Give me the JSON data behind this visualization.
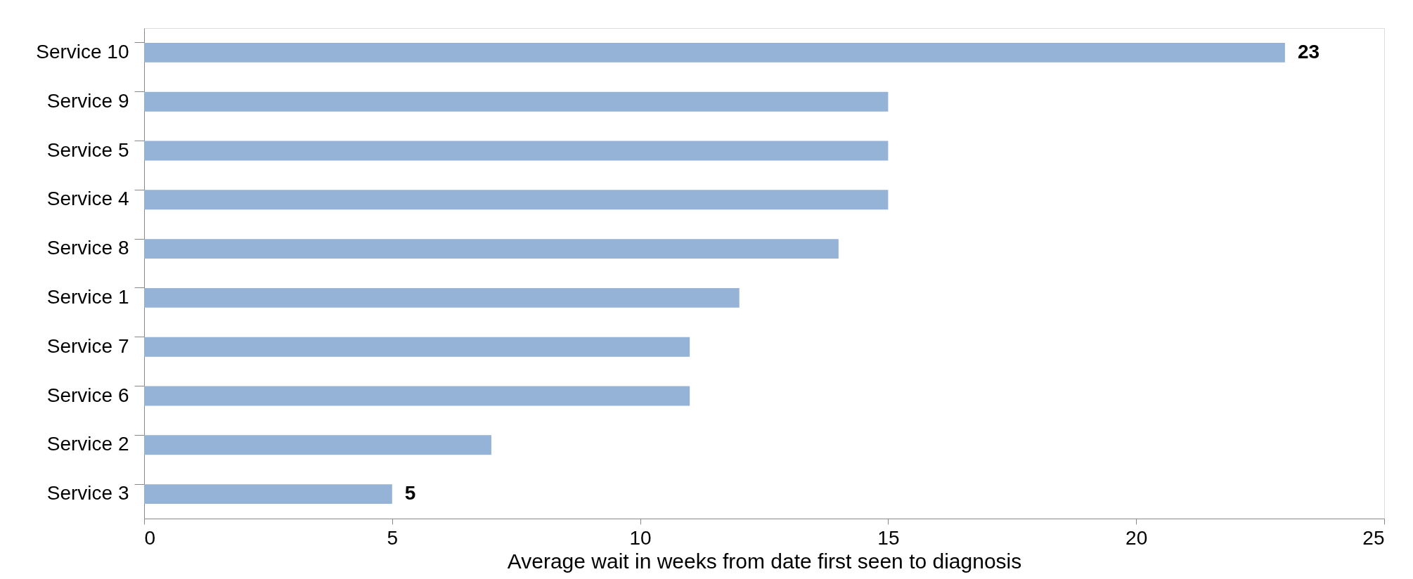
{
  "chart_data": {
    "type": "bar",
    "orientation": "horizontal",
    "xlabel": "Average wait in weeks from date first seen to diagnosis",
    "categories": [
      "Service 10",
      "Service 9",
      "Service 5",
      "Service 4",
      "Service 8",
      "Service 1",
      "Service 7",
      "Service 6",
      "Service 2",
      "Service 3"
    ],
    "values": [
      23,
      15,
      15,
      15,
      14,
      12,
      11,
      11,
      7,
      5
    ],
    "value_labels": [
      "23",
      null,
      null,
      null,
      null,
      null,
      null,
      null,
      null,
      "5"
    ],
    "color": "#95b3d7",
    "xlim": [
      0,
      25
    ],
    "xticks": [
      0,
      5,
      10,
      15,
      20,
      25
    ],
    "grid": false
  }
}
